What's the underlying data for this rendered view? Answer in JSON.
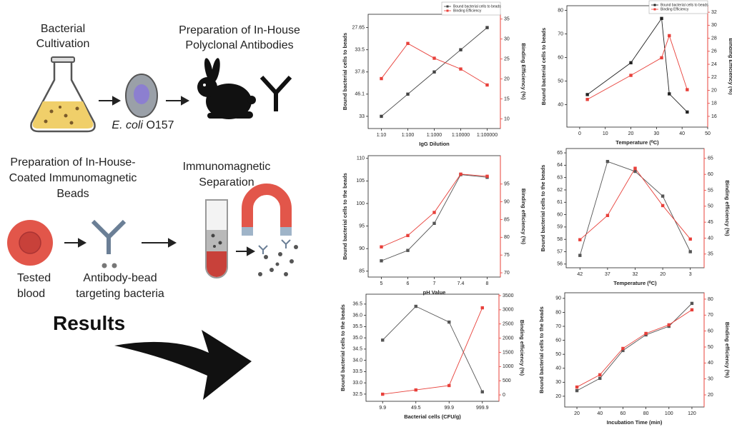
{
  "diagram": {
    "cultivation": {
      "lines": [
        "Bacterial",
        "Cultivation"
      ]
    },
    "antibodies": {
      "lines": [
        "Preparation of In-House",
        "Polyclonal Antibodies"
      ]
    },
    "organism": {
      "genus": "E. coli",
      "strain": "O157"
    },
    "beads": {
      "lines": [
        "Preparation of In-House-",
        "Coated Immunomagnetic",
        "Beads"
      ]
    },
    "separation": {
      "lines": [
        "Immunomagnetic",
        "Separation"
      ]
    },
    "blood": {
      "lines": [
        "Tested",
        "blood"
      ]
    },
    "targeting": {
      "lines": [
        "Antibody-bead",
        "targeting bacteria"
      ]
    },
    "results": "Results"
  },
  "chart_data": [
    {
      "type": "line",
      "categories": [
        "1:10",
        "1:100",
        "1:1000",
        "1:10000",
        "1:100000"
      ],
      "xlabel": "IgG Dilution",
      "ylabel": "Bound bacterial cells to beads",
      "y2label": "Binding Efficiency (%)",
      "ylim": [
        0.45,
        5.6
      ],
      "yticks": [
        {
          "value": 1,
          "label": "33"
        },
        {
          "value": 2,
          "label": "46.1"
        },
        {
          "value": 3,
          "label": "37.8"
        },
        {
          "value": 4,
          "label": "33.5"
        },
        {
          "value": 5,
          "label": "27.65"
        }
      ],
      "y2lim": [
        7.6,
        36.2
      ],
      "y2ticks": [
        10,
        15,
        20,
        25,
        30,
        35
      ],
      "legend": "upper right",
      "series": [
        {
          "name": "Bound bacterial cells to beads",
          "color": "#444444",
          "values": [
            1,
            2,
            3,
            4,
            5
          ]
        },
        {
          "name": "Binding Efficiency",
          "color": "#e8403a",
          "axis": "y2",
          "values": [
            20.1,
            28.9,
            25.2,
            22.5,
            18.5
          ]
        }
      ]
    },
    {
      "type": "line",
      "x": [
        3,
        20,
        32,
        35,
        42
      ],
      "xlim": [
        -5,
        50
      ],
      "xticks": [
        0,
        10,
        20,
        30,
        40,
        50
      ],
      "xlabel": "Temperature (⁰C)",
      "ylabel": "Bound bacterial cells to beads",
      "y2label": "Binding Efficiency (%)",
      "ylim": [
        30.5,
        82
      ],
      "yticks": [
        40,
        50,
        60,
        70,
        80
      ],
      "y2lim": [
        14.35,
        33
      ],
      "y2ticks": [
        16,
        18,
        20,
        22,
        24,
        26,
        28,
        30,
        32
      ],
      "legend": "upper right",
      "series": [
        {
          "name": "Bound bacterial cells to beads",
          "color": "#222222",
          "values": [
            44.3,
            57.8,
            76.6,
            44.6,
            36.9
          ]
        },
        {
          "name": "Binding Efficiency",
          "color": "#e8403a",
          "axis": "y2",
          "values": [
            18.6,
            22.3,
            25,
            28.4,
            20.1
          ]
        }
      ]
    },
    {
      "type": "line",
      "categories": [
        "5",
        "6",
        "7",
        "7.4",
        "8"
      ],
      "xlabel": "pH Value",
      "ylabel": "Bound bacterial cells to the beads",
      "y2label": "Binding efficiency (%)",
      "ylim": [
        83.7,
        110.6
      ],
      "yticks": [
        85,
        90,
        95,
        100,
        105,
        110
      ],
      "y2lim": [
        68.8,
        103
      ],
      "y2ticks": [
        70,
        75,
        80,
        85,
        90,
        95
      ],
      "series": [
        {
          "color": "#555555",
          "values": [
            87.3,
            89.6,
            95.6,
            106.4,
            105.8
          ]
        },
        {
          "color": "#e8403a",
          "axis": "y2",
          "values": [
            77.3,
            80.5,
            87,
            97.8,
            97.2
          ]
        }
      ]
    },
    {
      "type": "line",
      "categories": [
        "42",
        "37",
        "32",
        "20",
        "3"
      ],
      "xlabel": "Temperature (⁰C)",
      "ylabel": "Bound bacterial cells to the beads",
      "y2label": "Binding efficiency (%)",
      "ylim": [
        55.7,
        65.35
      ],
      "yticks": [
        56,
        57,
        58,
        59,
        60,
        61,
        62,
        63,
        64,
        65
      ],
      "y2lim": [
        30.7,
        68.1
      ],
      "y2ticks": [
        35,
        40,
        45,
        50,
        55,
        60,
        65
      ],
      "series": [
        {
          "color": "#555555",
          "values": [
            56.7,
            64.3,
            63.5,
            61.5,
            57
          ]
        },
        {
          "color": "#e8403a",
          "axis": "y2",
          "values": [
            39.5,
            47.1,
            61.9,
            50.2,
            39.7
          ]
        }
      ]
    },
    {
      "type": "line",
      "categories": [
        "9.9",
        "49.5",
        "99.9",
        "999.9"
      ],
      "xlabel": "Bacterial cells (CFU/g)",
      "ylabel": "Bound bacterial cells to the beads",
      "y2label": "Binding efficiency (%)",
      "ylim": [
        32.18,
        36.94
      ],
      "yticks": [
        32.5,
        {
          "value": 33,
          "label": "33.0"
        },
        33.5,
        {
          "value": 34,
          "label": "34.0"
        },
        34.5,
        {
          "value": 35,
          "label": "35.0"
        },
        35.5,
        {
          "value": 36,
          "label": "36.0"
        },
        36.5
      ],
      "y2lim": [
        -225,
        3550
      ],
      "y2ticks": [
        0,
        500,
        1000,
        1500,
        2000,
        2500,
        3000,
        3500
      ],
      "series": [
        {
          "color": "#555555",
          "values": [
            34.9,
            36.4,
            35.7,
            32.6
          ]
        },
        {
          "color": "#e8403a",
          "axis": "y2",
          "values": [
            25,
            175,
            330,
            3070
          ]
        }
      ]
    },
    {
      "type": "line",
      "x": [
        20,
        40,
        60,
        80,
        100,
        120
      ],
      "xlim": [
        9.4,
        130.6
      ],
      "xticks": [
        20,
        40,
        60,
        80,
        100,
        120
      ],
      "xlabel": "Incubation Time (min)",
      "ylabel": "Bound bacterial cells to the beads",
      "y2label": "Binding efficiency (%)",
      "ylim": [
        12.3,
        94
      ],
      "yticks": [
        20,
        30,
        40,
        50,
        60,
        70,
        80,
        90
      ],
      "y2lim": [
        12.4,
        84
      ],
      "y2ticks": [
        20,
        30,
        40,
        50,
        60,
        70,
        80
      ],
      "series": [
        {
          "color": "#555555",
          "values": [
            24,
            32.8,
            52.7,
            63.9,
            70,
            86.4
          ]
        },
        {
          "color": "#e8403a",
          "axis": "y2",
          "values": [
            24.9,
            32.6,
            49.1,
            58.5,
            63.9,
            73.3
          ]
        }
      ]
    }
  ]
}
